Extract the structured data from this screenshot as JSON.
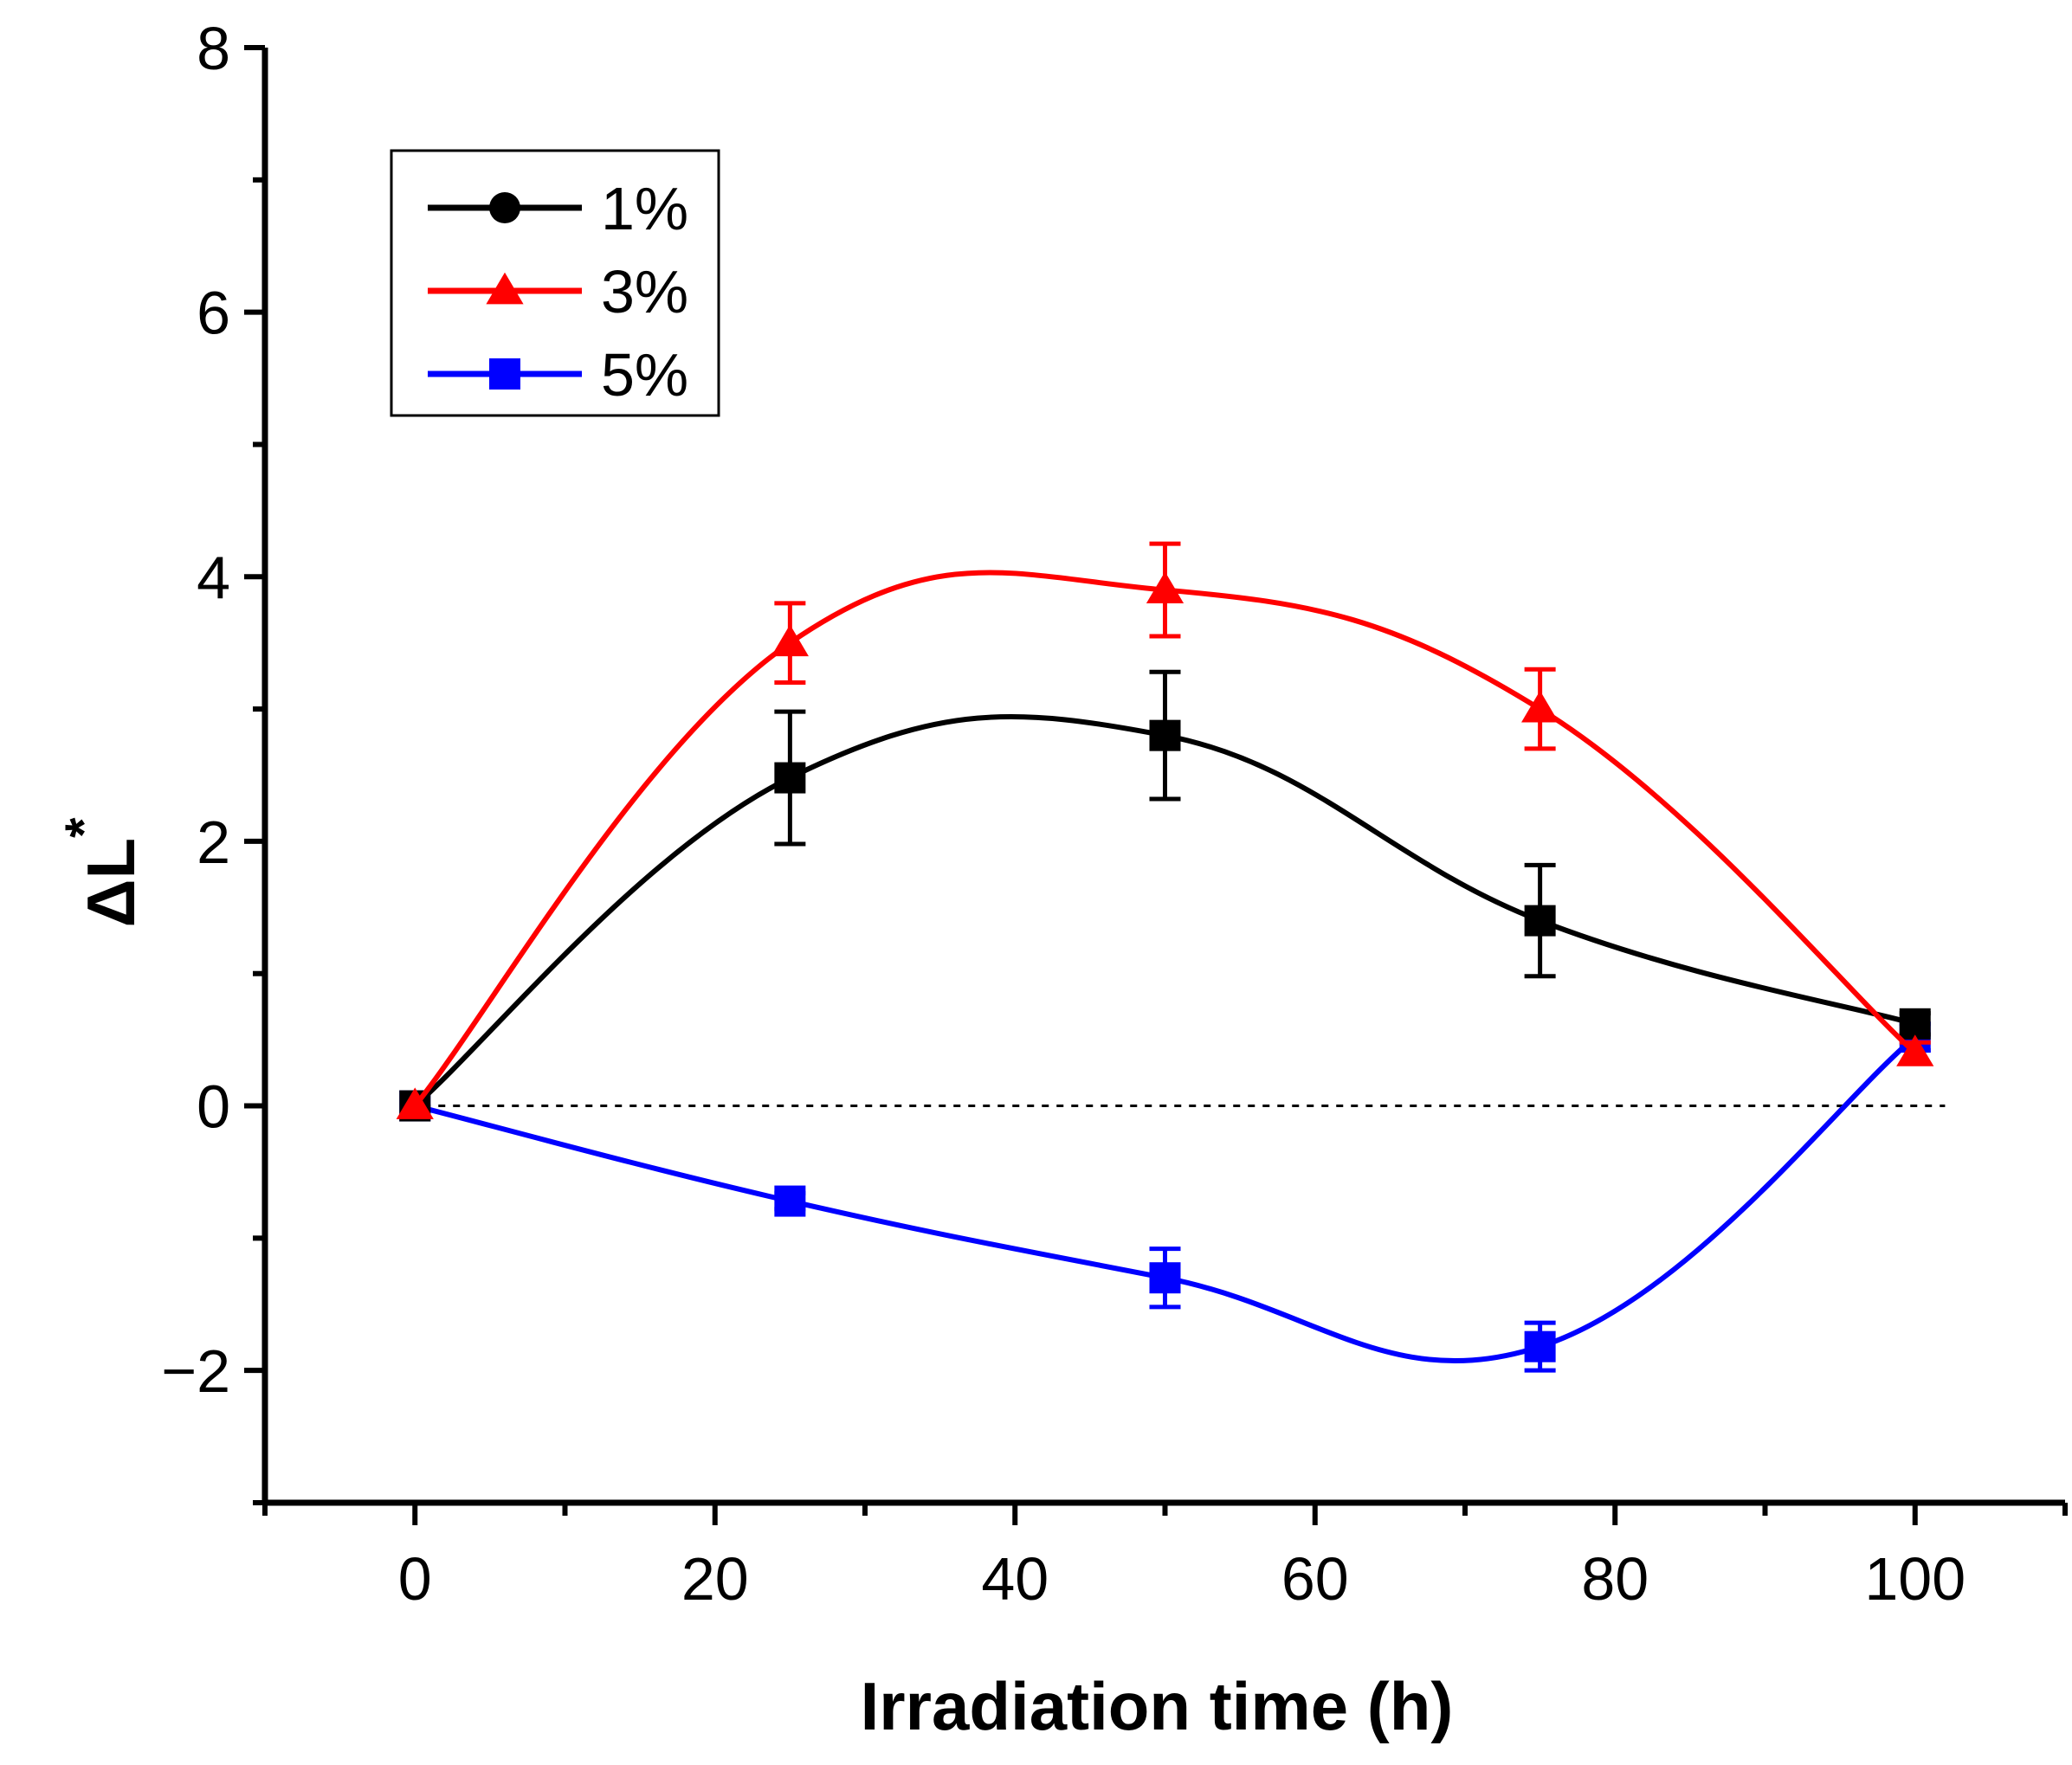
{
  "chart_data": {
    "type": "line",
    "xlabel": "Irradiation time (h)",
    "ylabel_main": "ΔL",
    "ylabel_sup": "*",
    "xlim": [
      -10,
      110
    ],
    "ylim": [
      -3,
      8
    ],
    "x_ticks": [
      0,
      20,
      40,
      60,
      80,
      100
    ],
    "y_ticks": [
      -2,
      0,
      2,
      4,
      6,
      8
    ],
    "y_tick_labels": [
      "−2",
      "0",
      "2",
      "4",
      "6",
      "8"
    ],
    "reference_line_y": 0,
    "grid": false,
    "legend_position": "top-left",
    "x": [
      0,
      25,
      50,
      75,
      100
    ],
    "series": [
      {
        "name": "1%",
        "color": "#000000",
        "legend_marker": "circle",
        "marker": "square",
        "values": [
          0,
          2.48,
          2.8,
          1.4,
          0.62
        ],
        "errors": [
          0,
          0.5,
          0.48,
          0.42,
          0.08
        ]
      },
      {
        "name": "3%",
        "color": "#ff0000",
        "legend_marker": "triangle",
        "marker": "triangle",
        "values": [
          0,
          3.5,
          3.9,
          3.0,
          0.4
        ],
        "errors": [
          0,
          0.3,
          0.35,
          0.3,
          0.08
        ]
      },
      {
        "name": "5%",
        "color": "#0000ff",
        "legend_marker": "square",
        "marker": "square",
        "values": [
          0,
          -0.72,
          -1.3,
          -1.82,
          0.52
        ],
        "errors": [
          0,
          0.06,
          0.22,
          0.18,
          0.1
        ]
      }
    ]
  }
}
